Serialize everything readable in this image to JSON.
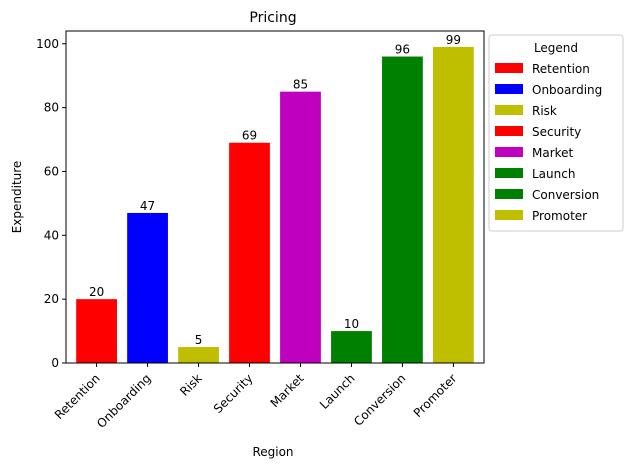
{
  "chart_data": {
    "type": "bar",
    "title": "Pricing",
    "xlabel": "Region",
    "ylabel": "Expenditure",
    "categories": [
      "Retention",
      "Onboarding",
      "Risk",
      "Security",
      "Market",
      "Launch",
      "Conversion",
      "Promoter"
    ],
    "values": [
      20,
      47,
      5,
      69,
      85,
      10,
      96,
      99
    ],
    "colors": [
      "#ff0000",
      "#0000ff",
      "#bfbf00",
      "#ff0000",
      "#bf00bf",
      "#008000",
      "#008000",
      "#bfbf00"
    ],
    "ylim": [
      0,
      104
    ],
    "yticks": [
      0,
      20,
      40,
      60,
      80,
      100
    ],
    "grid": false,
    "legend": {
      "title": "Legend",
      "placement": "outside-upper-right",
      "entries": [
        "Retention",
        "Onboarding",
        "Risk",
        "Security",
        "Market",
        "Launch",
        "Conversion",
        "Promoter"
      ]
    }
  }
}
